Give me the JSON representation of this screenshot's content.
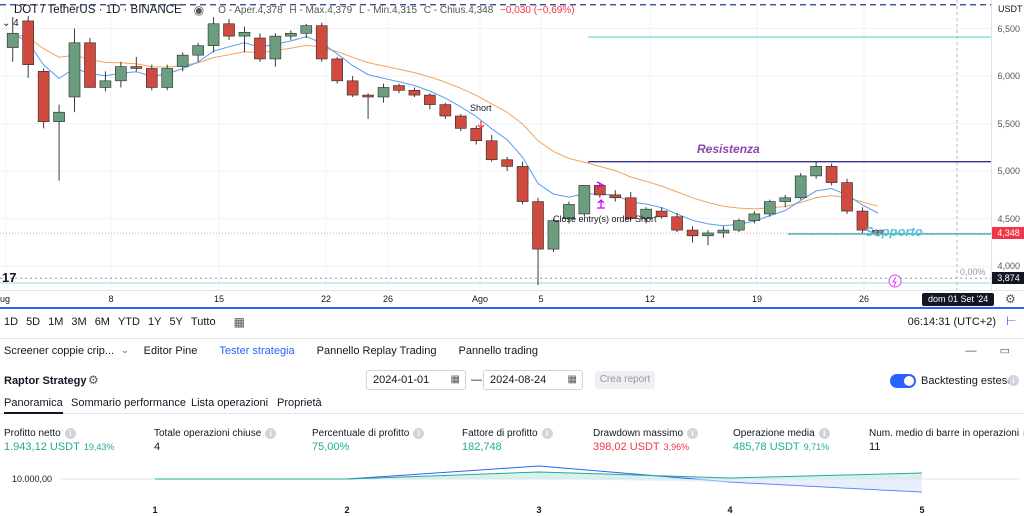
{
  "legend": {
    "symbol": "DOT / TetherUS · 1D · BINANCE",
    "open": "O - Aper.4,378",
    "high": "H - Max.4,379",
    "low": "L - Min.4,315",
    "close": "C - Chius.4,348",
    "change": "−0,030 (−0,69%)",
    "indicator_badge": "4"
  },
  "price_scale": {
    "currency": "USDT",
    "ticks": [
      "6,500",
      "6,000",
      "5,500",
      "5,000",
      "4,500",
      "4,000"
    ],
    "current_price": "4,348",
    "low_price": "3,874",
    "percent_label": "0,00%"
  },
  "time_scale": {
    "labels": [
      "ug",
      "8",
      "15",
      "22",
      "26",
      "Ago",
      "5",
      "12",
      "19",
      "26"
    ],
    "current_date": "dom 01 Set '24"
  },
  "annotations": {
    "short_label": "Short",
    "close_label": "Close entry(s) order Short",
    "resistance": "Resistenza",
    "support": "Supporto"
  },
  "timeframes": [
    "1D",
    "5D",
    "1M",
    "3M",
    "6M",
    "YTD",
    "1Y",
    "5Y",
    "Tutto"
  ],
  "clock": "06:14:31 (UTC+2)",
  "panel_tabs": [
    {
      "label": "Screener coppie crip...",
      "active": false
    },
    {
      "label": "Editor Pine",
      "active": false
    },
    {
      "label": "Tester strategia",
      "active": true
    },
    {
      "label": "Pannello Replay Trading",
      "active": false
    },
    {
      "label": "Pannello trading",
      "active": false
    }
  ],
  "strategy": {
    "name": "Raptor Strategy",
    "start_date": "2024-01-01",
    "end_date": "2024-08-24",
    "create_report": "Crea report",
    "deep_backtest": "Backtesting esteso"
  },
  "sub_tabs": [
    "Panoramica",
    "Sommario performance",
    "Lista operazioni",
    "Proprietà"
  ],
  "metrics": [
    {
      "label": "Profitto netto",
      "value": "1.943,12 USDT",
      "pct": "19,43%",
      "tone": "green"
    },
    {
      "label": "Totale operazioni chiuse",
      "value": "4",
      "pct": "",
      "tone": "plain"
    },
    {
      "label": "Percentuale di profitto",
      "value": "75,00%",
      "pct": "",
      "tone": "green"
    },
    {
      "label": "Fattore di profitto",
      "value": "182,748",
      "pct": "",
      "tone": "green"
    },
    {
      "label": "Drawdown massimo",
      "value": "398,02 USDT",
      "pct": "3,96%",
      "tone": "red"
    },
    {
      "label": "Operazione media",
      "value": "485,78 USDT",
      "pct": "9,71%",
      "tone": "green"
    },
    {
      "label": "Num. medio di barre in operazioni",
      "value": "11",
      "pct": "",
      "tone": "plain"
    }
  ],
  "equity": {
    "y_label": "10.000,00",
    "x_labels": [
      "1",
      "2",
      "3",
      "4",
      "5"
    ]
  },
  "chart_data": {
    "type": "candlestick",
    "y_unit": "USDT",
    "ylim": [
      3.75,
      6.8
    ],
    "candles": [
      {
        "o": 6.3,
        "h": 6.62,
        "l": 6.15,
        "c": 6.45
      },
      {
        "o": 6.58,
        "h": 6.63,
        "l": 5.98,
        "c": 6.12
      },
      {
        "o": 6.05,
        "h": 6.08,
        "l": 5.45,
        "c": 5.52
      },
      {
        "o": 5.52,
        "h": 5.7,
        "l": 4.9,
        "c": 5.62
      },
      {
        "o": 5.78,
        "h": 6.5,
        "l": 5.62,
        "c": 6.35
      },
      {
        "o": 6.35,
        "h": 6.4,
        "l": 5.88,
        "c": 5.88
      },
      {
        "o": 5.88,
        "h": 6.05,
        "l": 5.84,
        "c": 5.95
      },
      {
        "o": 5.95,
        "h": 6.15,
        "l": 5.88,
        "c": 6.1
      },
      {
        "o": 6.1,
        "h": 6.2,
        "l": 6.05,
        "c": 6.08
      },
      {
        "o": 6.08,
        "h": 6.12,
        "l": 5.85,
        "c": 5.88
      },
      {
        "o": 5.88,
        "h": 6.12,
        "l": 5.85,
        "c": 6.08
      },
      {
        "o": 6.1,
        "h": 6.25,
        "l": 6.05,
        "c": 6.22
      },
      {
        "o": 6.22,
        "h": 6.35,
        "l": 6.15,
        "c": 6.32
      },
      {
        "o": 6.32,
        "h": 6.62,
        "l": 6.25,
        "c": 6.55
      },
      {
        "o": 6.55,
        "h": 6.6,
        "l": 6.38,
        "c": 6.42
      },
      {
        "o": 6.42,
        "h": 6.52,
        "l": 6.25,
        "c": 6.46
      },
      {
        "o": 6.4,
        "h": 6.45,
        "l": 6.15,
        "c": 6.18
      },
      {
        "o": 6.18,
        "h": 6.45,
        "l": 6.1,
        "c": 6.42
      },
      {
        "o": 6.42,
        "h": 6.48,
        "l": 6.38,
        "c": 6.45
      },
      {
        "o": 6.45,
        "h": 6.55,
        "l": 6.4,
        "c": 6.53
      },
      {
        "o": 6.53,
        "h": 6.56,
        "l": 6.15,
        "c": 6.18
      },
      {
        "o": 6.18,
        "h": 6.2,
        "l": 5.92,
        "c": 5.95
      },
      {
        "o": 5.95,
        "h": 6.0,
        "l": 5.78,
        "c": 5.8
      },
      {
        "o": 5.8,
        "h": 5.82,
        "l": 5.55,
        "c": 5.78
      },
      {
        "o": 5.78,
        "h": 5.92,
        "l": 5.72,
        "c": 5.88
      },
      {
        "o": 5.9,
        "h": 5.92,
        "l": 5.82,
        "c": 5.85
      },
      {
        "o": 5.85,
        "h": 5.88,
        "l": 5.78,
        "c": 5.8
      },
      {
        "o": 5.8,
        "h": 5.82,
        "l": 5.65,
        "c": 5.7
      },
      {
        "o": 5.7,
        "h": 5.72,
        "l": 5.55,
        "c": 5.58
      },
      {
        "o": 5.58,
        "h": 5.6,
        "l": 5.42,
        "c": 5.45
      },
      {
        "o": 5.45,
        "h": 5.48,
        "l": 5.28,
        "c": 5.32
      },
      {
        "o": 5.32,
        "h": 5.38,
        "l": 5.1,
        "c": 5.12
      },
      {
        "o": 5.12,
        "h": 5.15,
        "l": 5.0,
        "c": 5.05
      },
      {
        "o": 5.05,
        "h": 5.1,
        "l": 4.65,
        "c": 4.68
      },
      {
        "o": 4.68,
        "h": 4.72,
        "l": 3.8,
        "c": 4.18
      },
      {
        "o": 4.18,
        "h": 4.5,
        "l": 4.15,
        "c": 4.48
      },
      {
        "o": 4.5,
        "h": 4.68,
        "l": 4.45,
        "c": 4.65
      },
      {
        "o": 4.55,
        "h": 4.85,
        "l": 4.52,
        "c": 4.85
      },
      {
        "o": 4.85,
        "h": 4.88,
        "l": 4.72,
        "c": 4.75
      },
      {
        "o": 4.75,
        "h": 4.8,
        "l": 4.68,
        "c": 4.72
      },
      {
        "o": 4.72,
        "h": 4.78,
        "l": 4.48,
        "c": 4.5
      },
      {
        "o": 4.5,
        "h": 4.62,
        "l": 4.45,
        "c": 4.6
      },
      {
        "o": 4.58,
        "h": 4.62,
        "l": 4.5,
        "c": 4.52
      },
      {
        "o": 4.52,
        "h": 4.56,
        "l": 4.36,
        "c": 4.38
      },
      {
        "o": 4.38,
        "h": 4.42,
        "l": 4.25,
        "c": 4.32
      },
      {
        "o": 4.32,
        "h": 4.38,
        "l": 4.22,
        "c": 4.35
      },
      {
        "o": 4.35,
        "h": 4.42,
        "l": 4.3,
        "c": 4.38
      },
      {
        "o": 4.38,
        "h": 4.5,
        "l": 4.36,
        "c": 4.48
      },
      {
        "o": 4.48,
        "h": 4.58,
        "l": 4.45,
        "c": 4.55
      },
      {
        "o": 4.55,
        "h": 4.7,
        "l": 4.52,
        "c": 4.68
      },
      {
        "o": 4.68,
        "h": 4.75,
        "l": 4.62,
        "c": 4.72
      },
      {
        "o": 4.72,
        "h": 4.98,
        "l": 4.7,
        "c": 4.95
      },
      {
        "o": 4.95,
        "h": 5.1,
        "l": 4.92,
        "c": 5.05
      },
      {
        "o": 5.05,
        "h": 5.08,
        "l": 4.85,
        "c": 4.88
      },
      {
        "o": 4.88,
        "h": 4.92,
        "l": 4.55,
        "c": 4.58
      },
      {
        "o": 4.58,
        "h": 4.62,
        "l": 4.35,
        "c": 4.38
      },
      {
        "o": 4.378,
        "h": 4.379,
        "l": 4.315,
        "c": 4.348
      }
    ],
    "resistance_level": 5.1,
    "support_level": 4.34,
    "top_dashed_level": 6.75,
    "low_marker": 3.874
  }
}
